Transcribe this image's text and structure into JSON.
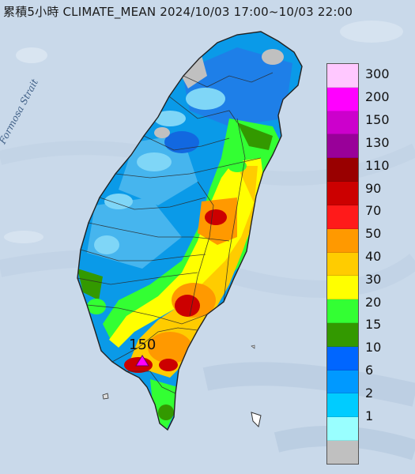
{
  "title": "累積5小時 CLIMATE_MEAN 2024/10/03 17:00~10/03 22:00",
  "strait_label": "Formosa Strait",
  "peak_marker": {
    "label": "150",
    "symbol": "magenta-triangle"
  },
  "legend": {
    "bins": [
      {
        "label": "300",
        "color": "#ffc8ff"
      },
      {
        "label": "200",
        "color": "#ff00ff"
      },
      {
        "label": "150",
        "color": "#cc00cc"
      },
      {
        "label": "130",
        "color": "#990099"
      },
      {
        "label": "110",
        "color": "#990000"
      },
      {
        "label": "90",
        "color": "#cc0000"
      },
      {
        "label": "70",
        "color": "#ff1a1a"
      },
      {
        "label": "50",
        "color": "#ff9900"
      },
      {
        "label": "40",
        "color": "#ffcc00"
      },
      {
        "label": "30",
        "color": "#ffff00"
      },
      {
        "label": "20",
        "color": "#33ff33"
      },
      {
        "label": "15",
        "color": "#339900"
      },
      {
        "label": "10",
        "color": "#0066ff"
      },
      {
        "label": "6",
        "color": "#0099ff"
      },
      {
        "label": "2",
        "color": "#00ccff"
      },
      {
        "label": "1",
        "color": "#99ffff"
      },
      {
        "label": "",
        "color": "#c0c0c0"
      }
    ]
  }
}
